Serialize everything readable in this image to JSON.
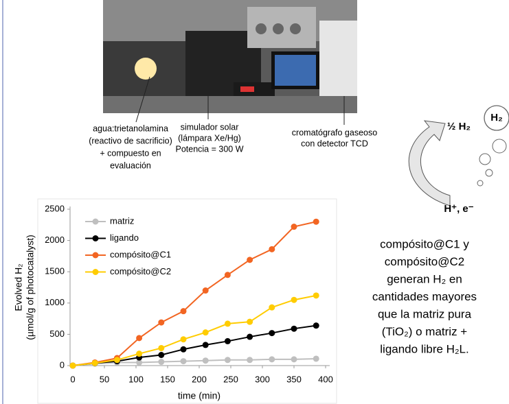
{
  "photo_labels": [
    [
      "agua:trietanolamina",
      "(reactivo de sacrificio)",
      "+ compuesto en",
      "evaluación"
    ],
    [
      "simulador solar",
      "(lámpara Xe/Hg)",
      "Potencia = 300 W"
    ],
    [
      "cromatógrafo gaseoso",
      "con detector TCD"
    ]
  ],
  "diagram": {
    "top": "½ H₂",
    "bubble": "H₂",
    "bottom": "H⁺, e⁻"
  },
  "caption": [
    "compósito@C1 y",
    "compósito@C2",
    "generan H₂ en",
    "cantidades mayores",
    "que la matriz pura",
    "(TiO₂) o matriz +",
    "ligando libre H₂L."
  ],
  "chart_data": {
    "type": "line",
    "xlabel": "time (min)",
    "ylabel": [
      "Evolved H₂",
      "(µmol/g of photocatalyst)"
    ],
    "x": [
      0,
      35,
      70,
      105,
      140,
      175,
      210,
      245,
      280,
      315,
      350,
      385
    ],
    "series": [
      {
        "name": "matriz",
        "color": "#bfbfbf",
        "values": [
          0,
          30,
          50,
          50,
          60,
          70,
          80,
          90,
          90,
          100,
          100,
          110
        ]
      },
      {
        "name": "ligando",
        "color": "#000000",
        "values": [
          0,
          40,
          70,
          130,
          170,
          260,
          330,
          390,
          460,
          520,
          590,
          640
        ]
      },
      {
        "name": "compósito@C1",
        "color": "#f26522",
        "values": [
          0,
          50,
          120,
          440,
          690,
          870,
          1200,
          1450,
          1690,
          1860,
          2220,
          2300
        ]
      },
      {
        "name": "compósito@C2",
        "color": "#ffcc00",
        "values": [
          0,
          40,
          90,
          190,
          280,
          420,
          530,
          670,
          700,
          930,
          1050,
          1120
        ]
      }
    ],
    "xlim": [
      0,
      400
    ],
    "ylim": [
      0,
      2500
    ],
    "xticks": [
      0,
      50,
      100,
      150,
      200,
      250,
      300,
      350,
      400
    ],
    "yticks": [
      0,
      500,
      1000,
      1500,
      2000,
      2500
    ],
    "legend": "upper-left"
  }
}
